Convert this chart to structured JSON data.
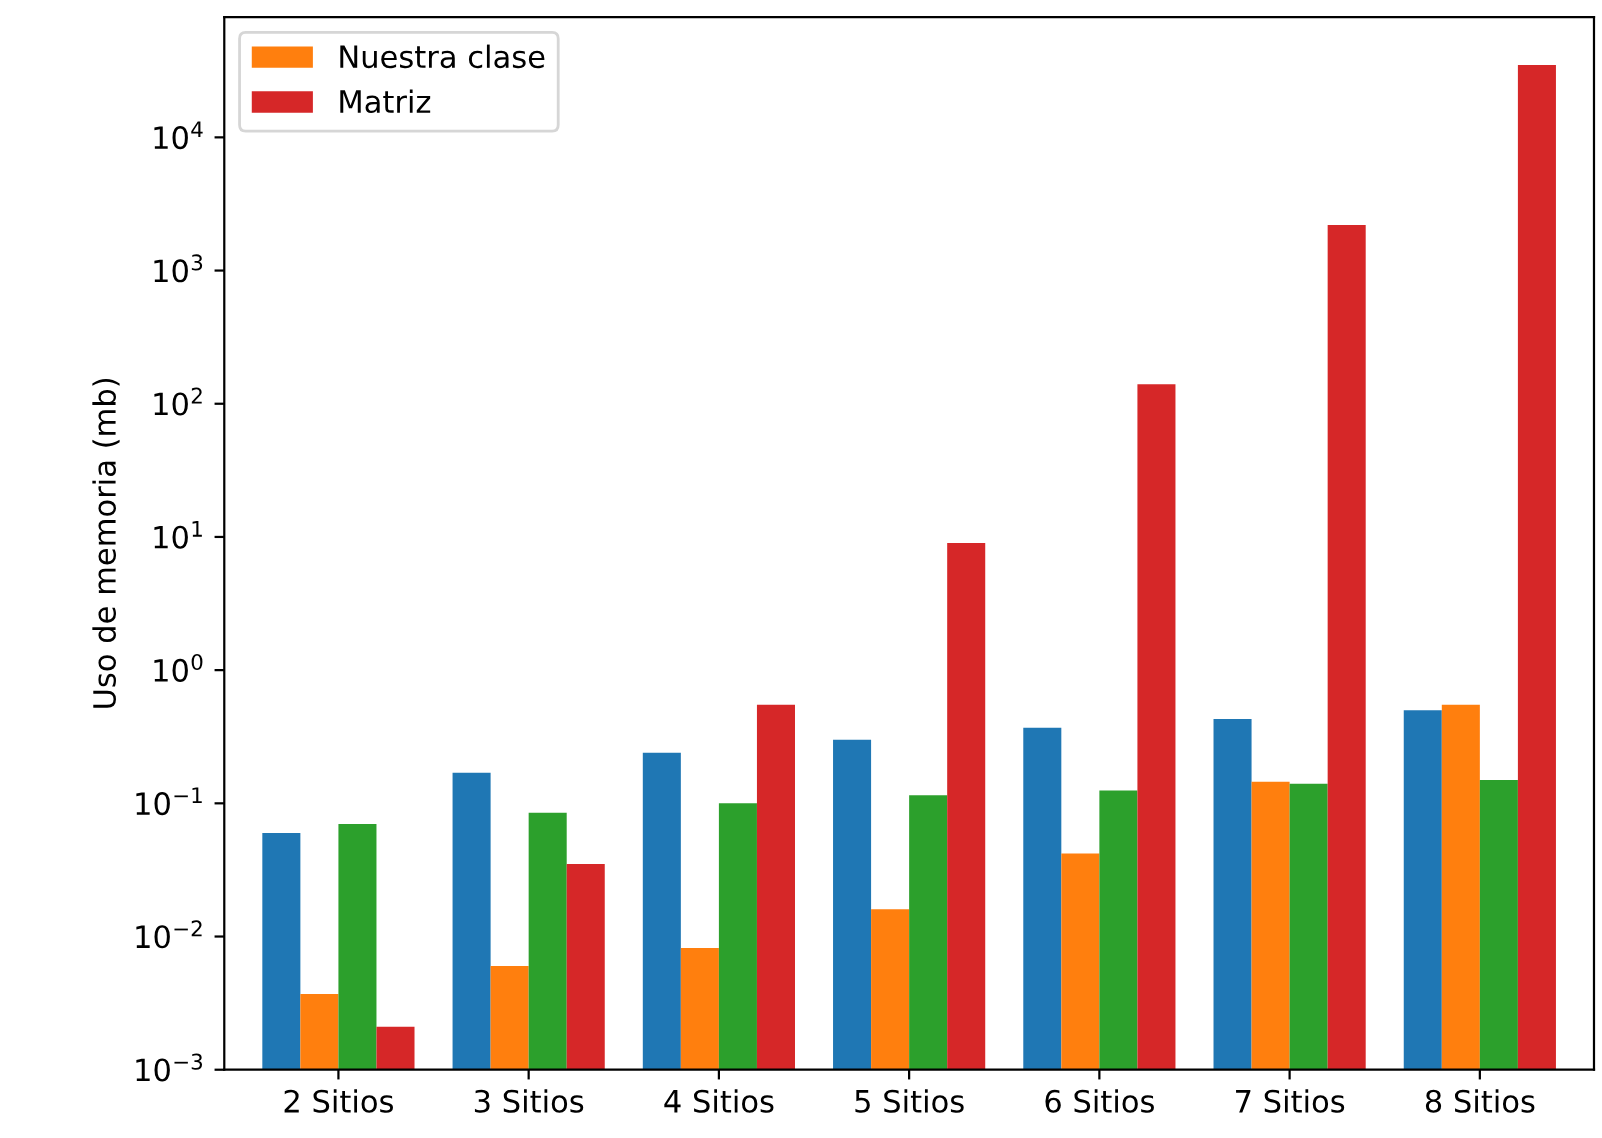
{
  "chart_data": {
    "type": "bar",
    "ylabel": "Uso de memoria (mb)",
    "categories": [
      "2 Sitios",
      "3 Sitios",
      "4 Sitios",
      "5 Sitios",
      "6 Sitios",
      "7 Sitios",
      "8 Sitios"
    ],
    "series": [
      {
        "color": "#1f77b4",
        "values": [
          0.06,
          0.17,
          0.24,
          0.3,
          0.37,
          0.43,
          0.5
        ]
      },
      {
        "name": "Nuestra clase",
        "color": "#ff7f0e",
        "values": [
          0.0037,
          0.006,
          0.0082,
          0.016,
          0.042,
          0.145,
          0.55
        ]
      },
      {
        "color": "#2ca02c",
        "values": [
          0.07,
          0.085,
          0.1,
          0.115,
          0.125,
          0.14,
          0.15
        ]
      },
      {
        "name": "Matriz",
        "color": "#d62728",
        "values": [
          0.0021,
          0.035,
          0.55,
          9,
          140,
          2200,
          35000
        ]
      }
    ],
    "log": true,
    "ylim": [
      0.001,
      80000
    ],
    "yticks": [
      {
        "value": 0.001,
        "label": "10$^{−3}$"
      },
      {
        "value": 0.01,
        "label": "10$^{−2}$"
      },
      {
        "value": 0.1,
        "label": "10$^{−1}$"
      },
      {
        "value": 1,
        "label": "10$^{0}$"
      },
      {
        "value": 10,
        "label": "10$^{1}$"
      },
      {
        "value": 100,
        "label": "10$^{2}$"
      },
      {
        "value": 1000,
        "label": "10$^{3}$"
      },
      {
        "value": 10000,
        "label": "10$^{4}$"
      }
    ],
    "legend": "top left",
    "grid": false
  }
}
